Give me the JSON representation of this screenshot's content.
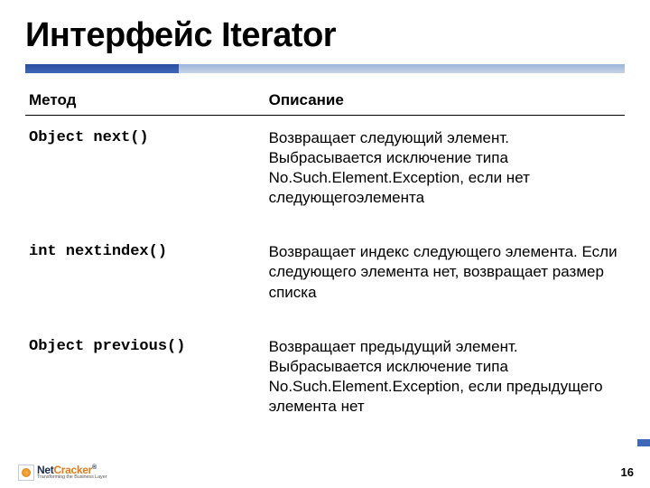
{
  "title": "Интерфейс Iterator",
  "columns": [
    "Метод",
    "Описание"
  ],
  "rows": [
    {
      "method": "Object next()",
      "desc": "Возвращает следующий элемент. Выбрасывается исключение типа No.Such.Element.Exception, если нет следующегоэлемента"
    },
    {
      "method": "int nextindex()",
      "desc": "Возвращает индекс следующего элемента. Если следующего элемента нет, возвращает размер списка"
    },
    {
      "method": "Object previous()",
      "desc": "Возвращает предыдущий элемент. Выбрасывается исключение типа No.Such.Element.Exception, если предыдущего элемента нет"
    }
  ],
  "logo": {
    "brand_a": "Net",
    "brand_b": "Cracker",
    "tagline": "Transforming the Business Layer"
  },
  "page_number": "16",
  "colors": {
    "bar_track_top": "#9db6d9",
    "bar_fill": "#3f68b8",
    "text": "#000000",
    "logo_dark": "#1b2b50",
    "logo_orange": "#e07b1a"
  }
}
